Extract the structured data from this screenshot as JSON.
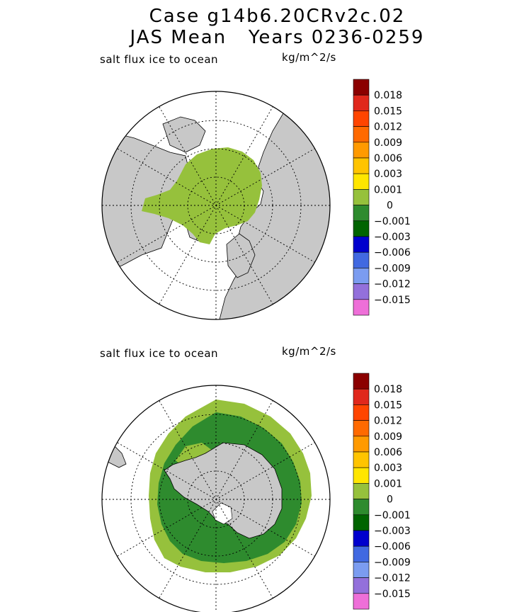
{
  "title": {
    "line1": "Case g14b6.20CRv2c.02",
    "line2": "JAS Mean   Years 0236-0259"
  },
  "panels": [
    {
      "hemisphere": "north",
      "variable_label": "salt flux ice to ocean",
      "units_label": "kg/m^2/s"
    },
    {
      "hemisphere": "south",
      "variable_label": "salt flux ice to ocean",
      "units_label": "kg/m^2/s"
    }
  ],
  "colorbar": {
    "colors": [
      "#8b0000",
      "#e0281c",
      "#ff4500",
      "#ff6a00",
      "#ff9a00",
      "#ffc400",
      "#ffe600",
      "#96c13c",
      "#2e8b2e",
      "#006400",
      "#0000cd",
      "#4169e1",
      "#7b9cf0",
      "#9370db",
      "#ee6fd8"
    ],
    "tick_labels": [
      "0.018",
      "0.015",
      "0.012",
      "0.009",
      "0.006",
      "0.003",
      "0.001",
      "0",
      "−0.001",
      "−0.003",
      "−0.006",
      "−0.009",
      "−0.012",
      "−0.015"
    ]
  },
  "colors": {
    "land": "#c8c8c8",
    "ocean": "#ffffff",
    "ice_light": "#96c13c",
    "ice_dark": "#2e8b2e"
  }
}
